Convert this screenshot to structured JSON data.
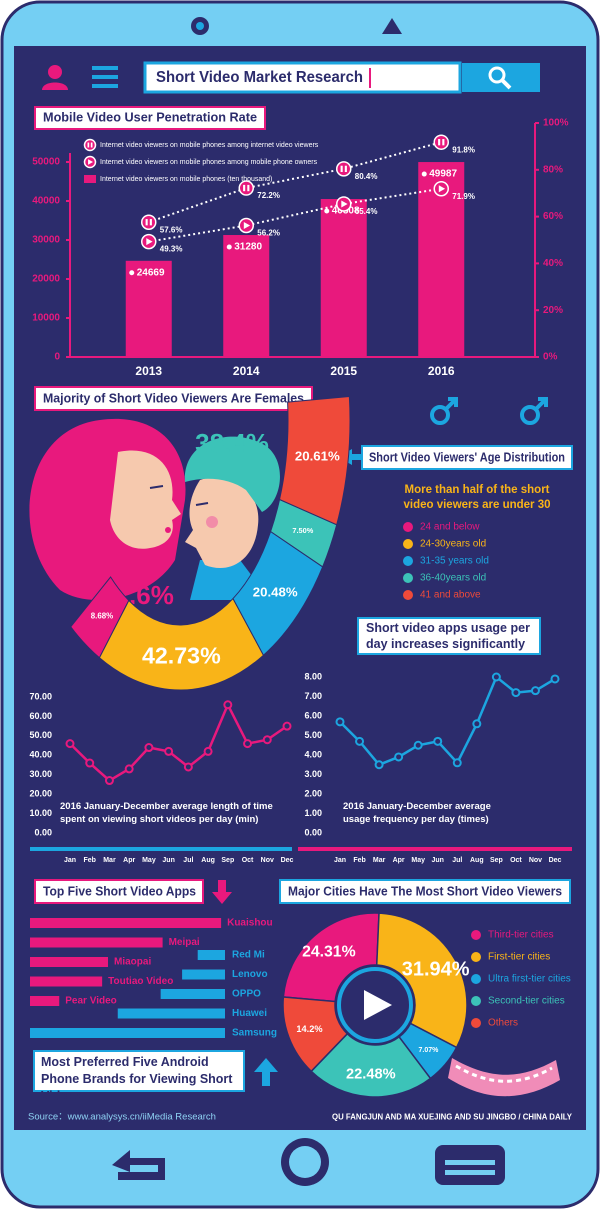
{
  "header": {
    "search_text": "Short Video Market Research"
  },
  "usage": {
    "title": "Short video apps usage per day increases significantly"
  },
  "footer": {
    "source": "Source：www.analysys.cn/iiMedia Research",
    "credit": "QU FANGJUN AND MA XUEJING AND SU JINGBO / CHINA DAILY"
  },
  "chart_data": [
    {
      "type": "bar",
      "title": "Mobile Video User Penetration Rate",
      "categories": [
        "2013",
        "2014",
        "2015",
        "2016"
      ],
      "series": [
        {
          "name": "Internet video viewers on mobile phones among internet video viewers",
          "type": "line",
          "axis": "y2",
          "marker": "pause",
          "color": "#e8197d",
          "values": [
            57.6,
            72.2,
            80.4,
            91.8
          ],
          "value_labels": [
            "57.6%",
            "72.2%",
            "80.4%",
            "91.8%"
          ]
        },
        {
          "name": "Internet video viewers on mobile phones among mobile phone owners",
          "type": "line",
          "axis": "y2",
          "marker": "play",
          "color": "#e8197d",
          "values": [
            49.3,
            56.2,
            65.4,
            71.9
          ],
          "value_labels": [
            "49.3%",
            "56.2%",
            "65.4%",
            "71.9%"
          ]
        },
        {
          "name": "Internet video viewers on mobile phones (ten thousand)",
          "color": "#e8197d",
          "values": [
            24669,
            31280,
            40508,
            49987
          ]
        }
      ],
      "ylim": [
        0,
        60000
      ],
      "yticks": [
        0,
        10000,
        20000,
        30000,
        40000,
        50000
      ],
      "y2lim": [
        0,
        100
      ],
      "y2ticks": [
        {
          "value": 0,
          "label": "0%"
        },
        {
          "value": 20,
          "label": "20%"
        },
        {
          "value": 40,
          "label": "40%"
        },
        {
          "value": 60,
          "label": "60%"
        },
        {
          "value": 80,
          "label": "80%"
        },
        {
          "value": 100,
          "label": "100%"
        }
      ],
      "legend": "upper left"
    },
    {
      "type": "pictogram",
      "title": "Majority of Short Video Viewers Are Females",
      "values": [
        61.6,
        38.4
      ],
      "value_labels": [
        "61.6%",
        "38.4%"
      ],
      "colors": [
        "#e8197d",
        "#3cc3b8"
      ]
    },
    {
      "type": "arc",
      "title": "Short Video Viewers' Age Distribution",
      "subtitle": "More than half of the short video viewers are under 30",
      "categories": [
        "24 and below",
        "24-30years old",
        "31-35 years old",
        "36-40years old",
        "41 and above"
      ],
      "values": [
        8.68,
        42.73,
        20.48,
        7.5,
        20.61
      ],
      "value_labels": [
        "8.68%",
        "42.73%",
        "20.48%",
        "7.50%",
        "20.61%"
      ],
      "colors": [
        "#e8197d",
        "#f9b418",
        "#1ca6e0",
        "#3cc3b8",
        "#ef4a3a"
      ],
      "legend": "right"
    },
    {
      "type": "line",
      "caption": "2016 January-December average length of time spent on viewing short videos per day (min)",
      "categories": [
        "Jan",
        "Feb",
        "Mar",
        "Apr",
        "May",
        "Jun",
        "Jul",
        "Aug",
        "Sep",
        "Oct",
        "Nov",
        "Dec"
      ],
      "values": [
        46,
        36,
        27,
        33,
        44,
        42,
        34,
        42,
        66,
        46,
        48,
        55
      ],
      "color": "#e8197d",
      "ylim": [
        0,
        70
      ],
      "yticks": [
        {
          "value": 0,
          "label": "0.00"
        },
        {
          "value": 10,
          "label": "10.00"
        },
        {
          "value": 20,
          "label": "20.00"
        },
        {
          "value": 30,
          "label": "30.00"
        },
        {
          "value": 40,
          "label": "40.00"
        },
        {
          "value": 50,
          "label": "50.00"
        },
        {
          "value": 60,
          "label": "60.00"
        },
        {
          "value": 70,
          "label": "70.00"
        }
      ]
    },
    {
      "type": "line",
      "caption": "2016 January-December average usage frequency per day (times)",
      "categories": [
        "Jan",
        "Feb",
        "Mar",
        "Apr",
        "May",
        "Jun",
        "Jul",
        "Aug",
        "Sep",
        "Oct",
        "Nov",
        "Dec"
      ],
      "values": [
        5.7,
        4.7,
        3.5,
        3.9,
        4.5,
        4.7,
        3.6,
        5.6,
        8.0,
        7.2,
        7.3,
        7.9
      ],
      "color": "#1ca6e0",
      "ylim": [
        0,
        8
      ],
      "yticks": [
        {
          "value": 0,
          "label": "0.00"
        },
        {
          "value": 1,
          "label": "1.00"
        },
        {
          "value": 2,
          "label": "2.00"
        },
        {
          "value": 3,
          "label": "3.00"
        },
        {
          "value": 4,
          "label": "4.00"
        },
        {
          "value": 5,
          "label": "5.00"
        },
        {
          "value": 6,
          "label": "6.00"
        },
        {
          "value": 7,
          "label": "7.00"
        },
        {
          "value": 8,
          "label": "8.00"
        }
      ]
    },
    {
      "type": "hbar",
      "title": "Top Five Short Video Apps",
      "categories": [
        "Kuaishou",
        "Meipai",
        "Miaopai",
        "Toutiao Video",
        "Pear Video"
      ],
      "values": [
        98,
        68,
        40,
        37,
        15
      ],
      "xlim": [
        0,
        100
      ],
      "color": "#e8197d"
    },
    {
      "type": "hbar",
      "title": "Most Preferred Five Android Phone Brands for Viewing Short Videos",
      "categories": [
        "Red Mi",
        "Lenovo",
        "OPPO",
        "Huawei",
        "Samsung"
      ],
      "values": [
        14,
        22,
        33,
        55,
        100
      ],
      "xlim": [
        0,
        100
      ],
      "color": "#1ca6e0"
    },
    {
      "type": "donut",
      "title": "Major Cities Have The Most Short Video Viewers",
      "categories": [
        "Third-tier cities",
        "First-tier cities",
        "Ultra first-tier cities",
        "Second-tier cities",
        "Others"
      ],
      "values": [
        24.31,
        31.94,
        7.07,
        22.48,
        14.2
      ],
      "value_labels": [
        "24.31%",
        "31.94%",
        "7.07%",
        "22.48%",
        "14.2%"
      ],
      "colors": [
        "#e8197d",
        "#f9b418",
        "#1ca6e0",
        "#3cc3b8",
        "#ef4a3a"
      ],
      "legend": "right"
    }
  ]
}
